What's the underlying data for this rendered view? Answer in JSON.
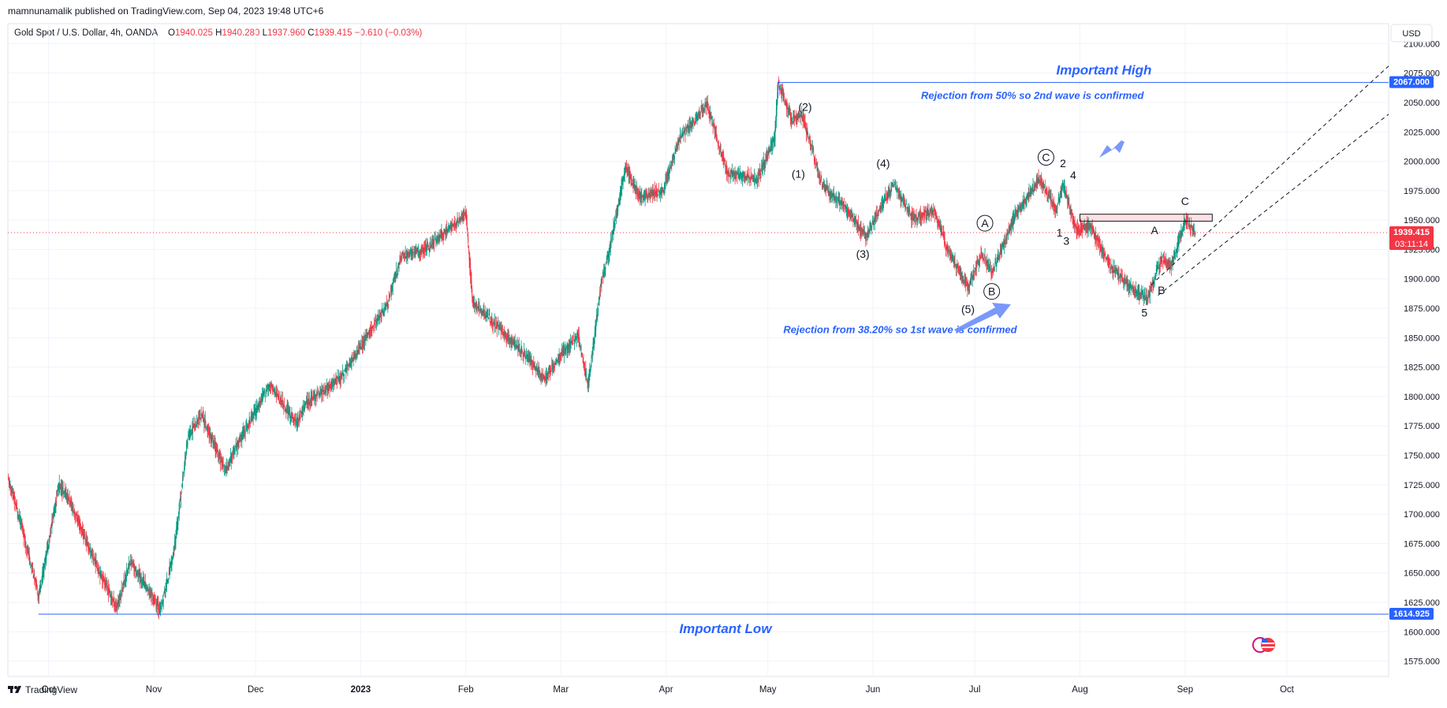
{
  "header": {
    "publisher_line": "mamnunamalik published on TradingView.com, Sep 04, 2023 19:48 UTC+6",
    "symbol": "Gold Spot / U.S. Dollar, 4h, OANDA",
    "open_label": "O",
    "open_value": "1940.025",
    "high_label": "H",
    "high_value": "1940.280",
    "low_label": "L",
    "low_value": "1937.960",
    "close_label": "C",
    "close_value": "1939.415",
    "change": "−0.610 (−0.03%)"
  },
  "currency_button": "USD",
  "footer": {
    "brand": "TradingView",
    "logo_icon": "tradingview-logo-icon"
  },
  "colors": {
    "up": "#089981",
    "down": "#f23645",
    "annotation_blue": "#2962ff",
    "line_blue": "#2962ff",
    "price_line": "#f23645",
    "grid": "#f0f3fa",
    "axis_text": "#131722"
  },
  "chart_data": {
    "type": "candlestick",
    "title": "Gold Spot / U.S. Dollar, 4h, OANDA",
    "y_axis": {
      "side": "right",
      "ylim": [
        1562,
        2117
      ],
      "ticks": [
        1575,
        1600,
        1625,
        1650,
        1675,
        1700,
        1725,
        1750,
        1775,
        1800,
        1825,
        1850,
        1875,
        1900,
        1925,
        1950,
        1975,
        2000,
        2025,
        2050,
        2075,
        2100
      ],
      "tick_labels": [
        "1575.000",
        "1600.000",
        "1625.000",
        "1650.000",
        "1675.000",
        "1700.000",
        "1725.000",
        "1750.000",
        "1775.000",
        "1800.000",
        "1825.000",
        "1850.000",
        "1875.000",
        "1900.000",
        "1925.000",
        "1950.000",
        "1975.000",
        "2000.000",
        "2025.000",
        "2050.000",
        "2075.000",
        "2100.000"
      ]
    },
    "x_axis": {
      "xlim": [
        "2022-09-19",
        "2023-10-31"
      ],
      "ticks": [
        {
          "date": "2022-10-01",
          "label": "Oct",
          "bold": false
        },
        {
          "date": "2022-11-01",
          "label": "Nov",
          "bold": false
        },
        {
          "date": "2022-12-01",
          "label": "Dec",
          "bold": false
        },
        {
          "date": "2023-01-01",
          "label": "2023",
          "bold": true
        },
        {
          "date": "2023-02-01",
          "label": "Feb",
          "bold": false
        },
        {
          "date": "2023-03-01",
          "label": "Mar",
          "bold": false
        },
        {
          "date": "2023-04-01",
          "label": "Apr",
          "bold": false
        },
        {
          "date": "2023-05-01",
          "label": "May",
          "bold": false
        },
        {
          "date": "2023-06-01",
          "label": "Jun",
          "bold": false
        },
        {
          "date": "2023-07-01",
          "label": "Jul",
          "bold": false
        },
        {
          "date": "2023-08-01",
          "label": "Aug",
          "bold": false
        },
        {
          "date": "2023-09-01",
          "label": "Sep",
          "bold": false
        },
        {
          "date": "2023-10-01",
          "label": "Oct",
          "bold": false
        }
      ]
    },
    "price_path": [
      [
        "2022-09-19",
        1730
      ],
      [
        "2022-09-23",
        1690
      ],
      [
        "2022-09-28",
        1630
      ],
      [
        "2022-10-04",
        1725
      ],
      [
        "2022-10-07",
        1712
      ],
      [
        "2022-10-13",
        1670
      ],
      [
        "2022-10-21",
        1620
      ],
      [
        "2022-10-25",
        1660
      ],
      [
        "2022-11-03",
        1618
      ],
      [
        "2022-11-07",
        1670
      ],
      [
        "2022-11-11",
        1765
      ],
      [
        "2022-11-15",
        1785
      ],
      [
        "2022-11-22",
        1737
      ],
      [
        "2022-11-25",
        1755
      ],
      [
        "2022-12-05",
        1810
      ],
      [
        "2022-12-13",
        1777
      ],
      [
        "2022-12-16",
        1795
      ],
      [
        "2022-12-26",
        1815
      ],
      [
        "2023-01-09",
        1880
      ],
      [
        "2023-01-13",
        1920
      ],
      [
        "2023-01-20",
        1925
      ],
      [
        "2023-01-26",
        1940
      ],
      [
        "2023-02-01",
        1955
      ],
      [
        "2023-02-03",
        1880
      ],
      [
        "2023-02-10",
        1860
      ],
      [
        "2023-02-17",
        1840
      ],
      [
        "2023-02-24",
        1815
      ],
      [
        "2023-03-01",
        1835
      ],
      [
        "2023-03-06",
        1852
      ],
      [
        "2023-03-09",
        1810
      ],
      [
        "2023-03-13",
        1900
      ],
      [
        "2023-03-15",
        1920
      ],
      [
        "2023-03-20",
        1995
      ],
      [
        "2023-03-24",
        1970
      ],
      [
        "2023-03-31",
        1975
      ],
      [
        "2023-04-05",
        2020
      ],
      [
        "2023-04-13",
        2048
      ],
      [
        "2023-04-19",
        1990
      ],
      [
        "2023-04-28",
        1985
      ],
      [
        "2023-05-03",
        2020
      ],
      [
        "2023-05-04",
        2067
      ],
      [
        "2023-05-08",
        2035
      ],
      [
        "2023-05-11",
        2040
      ],
      [
        "2023-05-17",
        1980
      ],
      [
        "2023-05-24",
        1960
      ],
      [
        "2023-05-30",
        1935
      ],
      [
        "2023-06-02",
        1955
      ],
      [
        "2023-06-07",
        1980
      ],
      [
        "2023-06-13",
        1950
      ],
      [
        "2023-06-19",
        1958
      ],
      [
        "2023-06-23",
        1925
      ],
      [
        "2023-06-29",
        1893
      ],
      [
        "2023-07-03",
        1922
      ],
      [
        "2023-07-06",
        1905
      ],
      [
        "2023-07-13",
        1955
      ],
      [
        "2023-07-20",
        1985
      ],
      [
        "2023-07-25",
        1958
      ],
      [
        "2023-07-27",
        1980
      ],
      [
        "2023-07-31",
        1942
      ],
      [
        "2023-08-04",
        1945
      ],
      [
        "2023-08-10",
        1910
      ],
      [
        "2023-08-17",
        1890
      ],
      [
        "2023-08-21",
        1884
      ],
      [
        "2023-08-25",
        1918
      ],
      [
        "2023-08-28",
        1912
      ],
      [
        "2023-09-01",
        1950
      ],
      [
        "2023-09-04",
        1939.415
      ]
    ],
    "last_price": {
      "value": 1939.415,
      "label": "1939.415",
      "countdown": "03:11:14"
    },
    "important_high": {
      "value": 2067,
      "label": "2067.000",
      "text": "Important High",
      "from": "2023-05-04"
    },
    "important_low": {
      "value": 1614.925,
      "label": "1614.925",
      "text": "Important Low",
      "from": "2022-09-28"
    },
    "annotations": [
      {
        "text": "Rejection from 50% so 2nd wave is confirmed",
        "date": "2023-07-18",
        "price": 2053
      },
      {
        "text": "Rejection from 38.20% so 1st wave is confirmed",
        "date": "2023-06-09",
        "price": 1854
      }
    ],
    "wave_labels": [
      {
        "text": "(2)",
        "date": "2023-05-12",
        "price": 2043,
        "circled": false
      },
      {
        "text": "(1)",
        "date": "2023-05-10",
        "price": 1986,
        "circled": false
      },
      {
        "text": "(4)",
        "date": "2023-06-04",
        "price": 1995,
        "circled": false
      },
      {
        "text": "(3)",
        "date": "2023-05-29",
        "price": 1918,
        "circled": false
      },
      {
        "text": "(5)",
        "date": "2023-06-29",
        "price": 1871,
        "circled": false
      },
      {
        "text": "A",
        "date": "2023-07-04",
        "price": 1944,
        "circled": true
      },
      {
        "text": "B",
        "date": "2023-07-06",
        "price": 1886,
        "circled": true
      },
      {
        "text": "C",
        "date": "2023-07-22",
        "price": 2000,
        "circled": true
      },
      {
        "text": "2",
        "date": "2023-07-27",
        "price": 1995,
        "circled": false
      },
      {
        "text": "4",
        "date": "2023-07-30",
        "price": 1985,
        "circled": false
      },
      {
        "text": "1",
        "date": "2023-07-26",
        "price": 1936,
        "circled": false
      },
      {
        "text": "3",
        "date": "2023-07-28",
        "price": 1929,
        "circled": false
      },
      {
        "text": "A",
        "date": "2023-08-23",
        "price": 1938,
        "circled": false
      },
      {
        "text": "B",
        "date": "2023-08-25",
        "price": 1887,
        "circled": false
      },
      {
        "text": "5",
        "date": "2023-08-20",
        "price": 1868,
        "circled": false
      },
      {
        "text": "C",
        "date": "2023-09-01",
        "price": 1963,
        "circled": false
      }
    ],
    "resistance_box": {
      "from": "2023-08-01",
      "to": "2023-09-09",
      "top": 1955,
      "bottom": 1949
    },
    "channel_lines": [
      {
        "start_date": "2023-08-22",
        "start": 1895,
        "end_date": "2023-10-31",
        "end": 2081
      },
      {
        "start_date": "2023-08-24",
        "start": 1886,
        "end_date": "2023-10-31",
        "end": 2040
      }
    ]
  }
}
